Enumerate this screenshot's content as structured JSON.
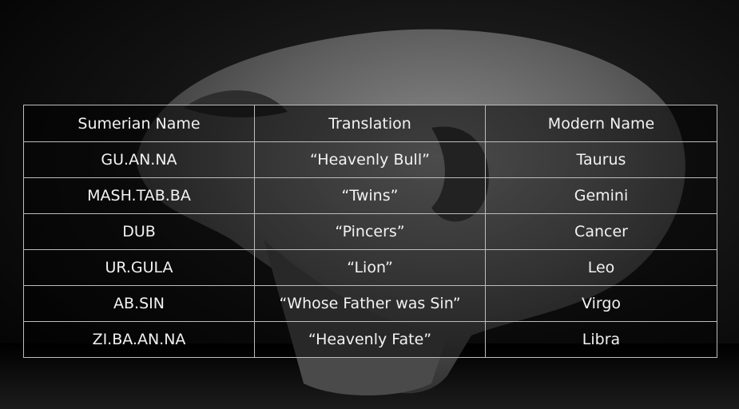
{
  "table": {
    "headers": [
      "Sumerian Name",
      "Translation",
      "Modern Name"
    ],
    "rows": [
      [
        "GU.AN.NA",
        "“Heavenly Bull”",
        "Taurus"
      ],
      [
        "MASH.TAB.BA",
        "“Twins”",
        "Gemini"
      ],
      [
        "DUB",
        "“Pincers”",
        "Cancer"
      ],
      [
        "UR.GULA",
        "“Lion”",
        "Leo"
      ],
      [
        "AB.SIN",
        "“Whose Father was Sin”",
        "Virgo"
      ],
      [
        "ZI.BA.AN.NA",
        "“Heavenly Fate”",
        "Libra"
      ]
    ]
  },
  "background": {
    "image_subject": "stone-sculpted-elongated-head",
    "colors": {
      "base": "#000000",
      "stone": "#6b6b6b",
      "grid": "#bdbdbd",
      "text": "#f2f2f2"
    }
  }
}
